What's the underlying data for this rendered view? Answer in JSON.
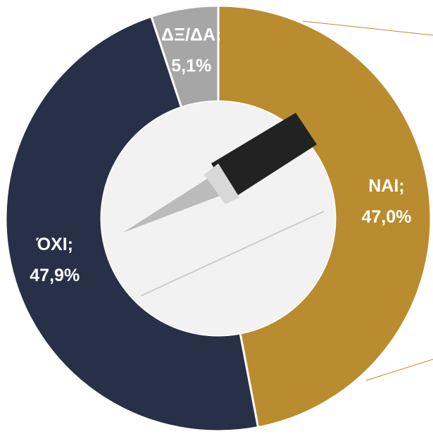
{
  "chart_data": {
    "type": "donut",
    "categories": [
      "ΝΑΙ;",
      "ΌΧΙ;",
      "ΔΞ/ΔΑ;"
    ],
    "values": [
      47.0,
      47.9,
      5.1
    ],
    "value_labels": [
      "47,0%",
      "47,9%",
      "5,1%"
    ],
    "colors": [
      "#b98c2f",
      "#283048",
      "#a6a6a6"
    ]
  }
}
